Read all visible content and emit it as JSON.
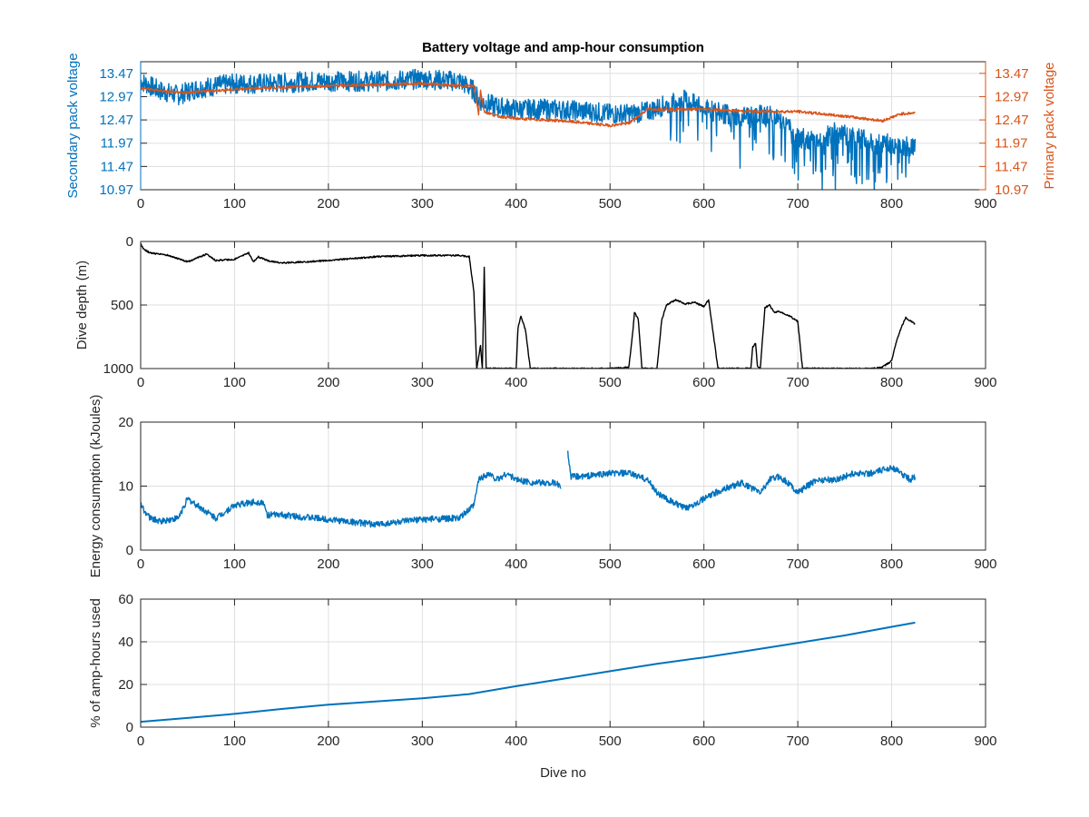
{
  "figure": {
    "title": "Battery voltage and amp-hour consumption",
    "background": "#ffffff",
    "axes_color": "#262626",
    "grid_color": "#dfdfdf"
  },
  "chart_data": [
    {
      "type": "line",
      "title": "Battery voltage and amp-hour consumption",
      "xlabel": "",
      "ylabel": "Secondary pack voltage",
      "ylabel_right": "Primary pack voltage",
      "xlim": [
        0,
        900
      ],
      "ylim": [
        10.97,
        13.72
      ],
      "ylim_right": [
        10.97,
        13.72
      ],
      "xticks": [
        0,
        100,
        200,
        300,
        400,
        500,
        600,
        700,
        800,
        900
      ],
      "yticks": [
        10.97,
        11.47,
        11.97,
        12.47,
        12.97,
        13.47
      ],
      "ytick_labels": [
        "10.97",
        "11.47",
        "11.97",
        "12.47",
        "12.97",
        "13.47"
      ],
      "yticks_right": [
        10.97,
        11.47,
        11.97,
        12.47,
        12.97,
        13.47
      ],
      "ytick_labels_right": [
        "10.97",
        "11.47",
        "11.97",
        "12.47",
        "12.97",
        "13.47"
      ],
      "grid": true,
      "series": [
        {
          "axis": "left",
          "color": "#0072BD",
          "noise": 0.22,
          "x": [
            0,
            20,
            40,
            60,
            80,
            100,
            140,
            180,
            220,
            260,
            300,
            340,
            355,
            360,
            365,
            380,
            400,
            440,
            480,
            500,
            520,
            540,
            560,
            580,
            600,
            620,
            640,
            660,
            680,
            700,
            720,
            740,
            760,
            780,
            800,
            815,
            825
          ],
          "y": [
            13.3,
            13.1,
            13.0,
            13.15,
            13.2,
            13.25,
            13.25,
            13.3,
            13.3,
            13.3,
            13.35,
            13.3,
            13.1,
            12.9,
            12.85,
            12.75,
            12.7,
            12.7,
            12.65,
            12.6,
            12.6,
            12.65,
            12.8,
            12.9,
            12.7,
            12.6,
            12.55,
            12.6,
            12.55,
            12.1,
            12.0,
            12.2,
            12.1,
            12.0,
            11.95,
            11.9,
            11.9
          ]
        },
        {
          "axis": "right",
          "color": "#D95319",
          "noise": 0.03,
          "x": [
            0,
            40,
            80,
            120,
            200,
            300,
            340,
            355,
            360,
            362,
            366,
            380,
            400,
            450,
            500,
            520,
            540,
            560,
            600,
            650,
            700,
            750,
            790,
            810,
            825
          ],
          "y": [
            13.15,
            13.05,
            13.1,
            13.15,
            13.2,
            13.25,
            13.2,
            13.2,
            12.6,
            13.1,
            12.65,
            12.55,
            12.5,
            12.45,
            12.35,
            12.4,
            12.7,
            12.7,
            12.7,
            12.65,
            12.65,
            12.55,
            12.45,
            12.6,
            12.62
          ]
        }
      ]
    },
    {
      "type": "line",
      "xlabel": "",
      "ylabel": "Dive depth (m)",
      "xlim": [
        0,
        900
      ],
      "ylim": [
        0,
        1000
      ],
      "y_reversed": true,
      "xticks": [
        0,
        100,
        200,
        300,
        400,
        500,
        600,
        700,
        800,
        900
      ],
      "yticks": [
        0,
        500,
        1000
      ],
      "ytick_labels": [
        "0",
        "500",
        "1000"
      ],
      "grid": true,
      "series": [
        {
          "color": "#000000",
          "noise": 6,
          "x": [
            0,
            3,
            10,
            30,
            50,
            70,
            80,
            100,
            115,
            120,
            125,
            135,
            150,
            200,
            250,
            300,
            340,
            350,
            355,
            358,
            362,
            364,
            366,
            368,
            370,
            400,
            402,
            405,
            410,
            415,
            420,
            500,
            520,
            524,
            526,
            530,
            534,
            540,
            550,
            555,
            560,
            570,
            580,
            590,
            600,
            605,
            615,
            620,
            650,
            652,
            655,
            657,
            660,
            665,
            670,
            675,
            680,
            690,
            700,
            705,
            715,
            720,
            780,
            790,
            800,
            805,
            810,
            815,
            825
          ],
          "y": [
            20,
            60,
            90,
            110,
            160,
            100,
            150,
            140,
            90,
            160,
            120,
            150,
            170,
            150,
            120,
            110,
            110,
            120,
            400,
            1000,
            820,
            1000,
            200,
            1000,
            1000,
            1000,
            680,
            590,
            700,
            1000,
            1000,
            1000,
            990,
            730,
            560,
            610,
            1000,
            1000,
            1000,
            620,
            500,
            460,
            490,
            480,
            510,
            460,
            1000,
            1000,
            1000,
            830,
            800,
            980,
            1000,
            520,
            500,
            560,
            550,
            580,
            630,
            1000,
            1000,
            1000,
            1000,
            990,
            940,
            790,
            680,
            600,
            650
          ]
        }
      ]
    },
    {
      "type": "line",
      "xlabel": "",
      "ylabel": "Energy consumption (kJoules)",
      "xlim": [
        0,
        900
      ],
      "ylim": [
        0,
        20
      ],
      "xticks": [
        0,
        100,
        200,
        300,
        400,
        500,
        600,
        700,
        800,
        900
      ],
      "yticks": [
        0,
        10,
        20
      ],
      "ytick_labels": [
        "0",
        "10",
        "20"
      ],
      "grid": true,
      "series": [
        {
          "color": "#0072BD",
          "noise": 0.5,
          "x": [
            0,
            10,
            20,
            40,
            50,
            60,
            80,
            100,
            120,
            130,
            135,
            150,
            200,
            250,
            300,
            340,
            355,
            360,
            370,
            380,
            390,
            400,
            420,
            440,
            448
          ],
          "y": [
            7,
            5,
            4.5,
            5,
            8,
            7,
            5,
            7,
            7.5,
            7.5,
            5.5,
            5.5,
            4.8,
            4,
            4.8,
            5,
            7,
            11,
            12,
            11,
            12,
            11,
            10.5,
            10.5,
            10
          ]
        },
        {
          "color": "#0072BD",
          "noise": 0.5,
          "x": [
            455,
            458,
            470,
            500,
            520,
            540,
            550,
            560,
            580,
            600,
            620,
            640,
            660,
            670,
            680,
            690,
            700,
            720,
            740,
            760,
            780,
            800,
            810,
            820,
            825
          ],
          "y": [
            15.5,
            11.5,
            11.5,
            12,
            12,
            11,
            9,
            8,
            6.5,
            8,
            9.5,
            10.5,
            9,
            11,
            11.5,
            10.5,
            9,
            11,
            11,
            12,
            12,
            13,
            12,
            11,
            11.5
          ]
        }
      ]
    },
    {
      "type": "line",
      "xlabel": "Dive no",
      "ylabel": "% of amp-hours used",
      "xlim": [
        0,
        900
      ],
      "ylim": [
        0,
        60
      ],
      "xticks": [
        0,
        100,
        200,
        300,
        400,
        500,
        600,
        700,
        800,
        900
      ],
      "yticks": [
        0,
        20,
        40,
        60
      ],
      "ytick_labels": [
        "0",
        "20",
        "40",
        "60"
      ],
      "grid": true,
      "series": [
        {
          "color": "#0072BD",
          "noise": 0,
          "x": [
            0,
            50,
            100,
            150,
            200,
            250,
            300,
            350,
            400,
            450,
            500,
            550,
            600,
            650,
            700,
            750,
            800,
            825
          ],
          "y": [
            2.5,
            4.3,
            6.2,
            8.5,
            10.5,
            12.0,
            13.5,
            15.5,
            19.2,
            22.7,
            26.2,
            29.7,
            32.7,
            36.0,
            39.5,
            43.0,
            47.0,
            49.0
          ]
        }
      ]
    }
  ]
}
